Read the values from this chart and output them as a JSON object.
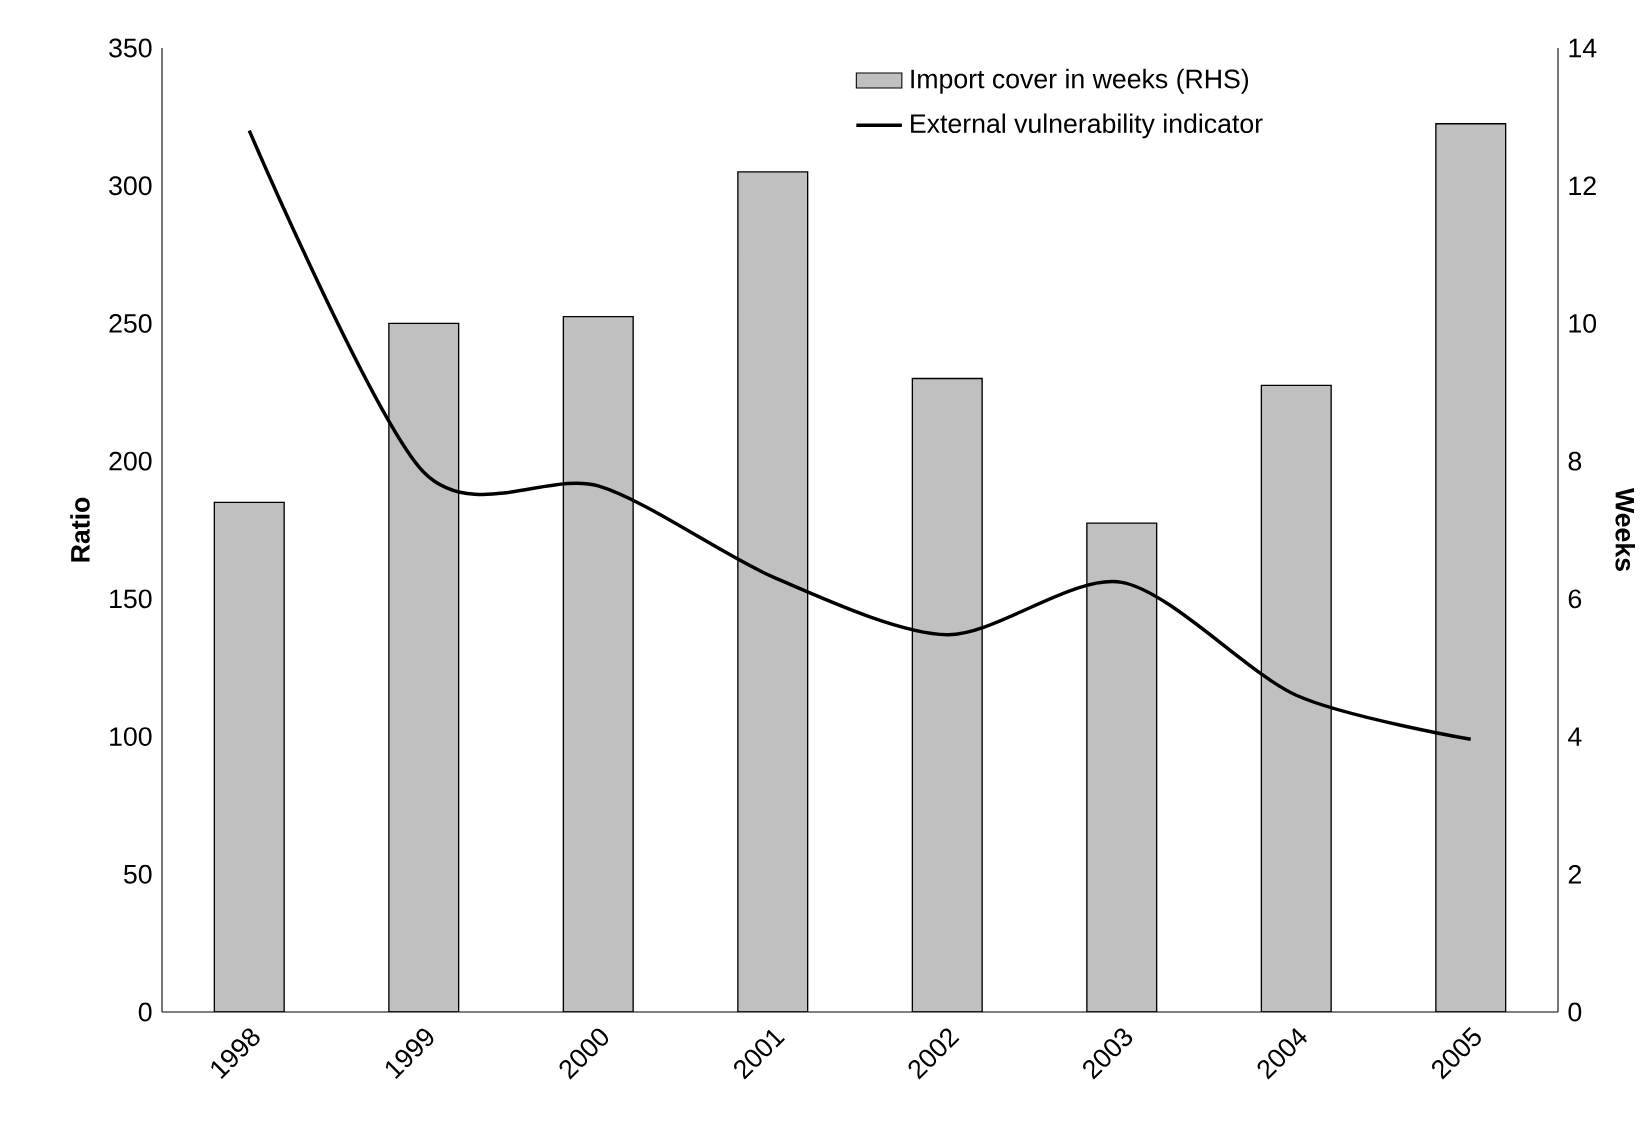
{
  "chart_data": {
    "type": "bar",
    "categories": [
      "1998",
      "1999",
      "2000",
      "2001",
      "2002",
      "2003",
      "2004",
      "2005"
    ],
    "ylabel": "Ratio",
    "y2label": "Weeks",
    "ylim": [
      0,
      350
    ],
    "yticks": [
      0,
      50,
      100,
      150,
      200,
      250,
      300,
      350
    ],
    "y2lim": [
      0,
      14
    ],
    "y2ticks": [
      0,
      2,
      4,
      6,
      8,
      10,
      12,
      14
    ],
    "legend": "top right",
    "series": [
      {
        "name": "Import cover in weeks (RHS)",
        "axis": "y2",
        "color": "#c0c0c0",
        "values": [
          7.4,
          10.0,
          10.1,
          12.2,
          9.2,
          7.1,
          9.1,
          12.9
        ]
      },
      {
        "name": "External vulnerability indicator",
        "type": "line",
        "color": "#000000",
        "values": [
          320,
          196,
          191,
          158,
          137,
          156,
          115,
          99
        ]
      }
    ]
  }
}
